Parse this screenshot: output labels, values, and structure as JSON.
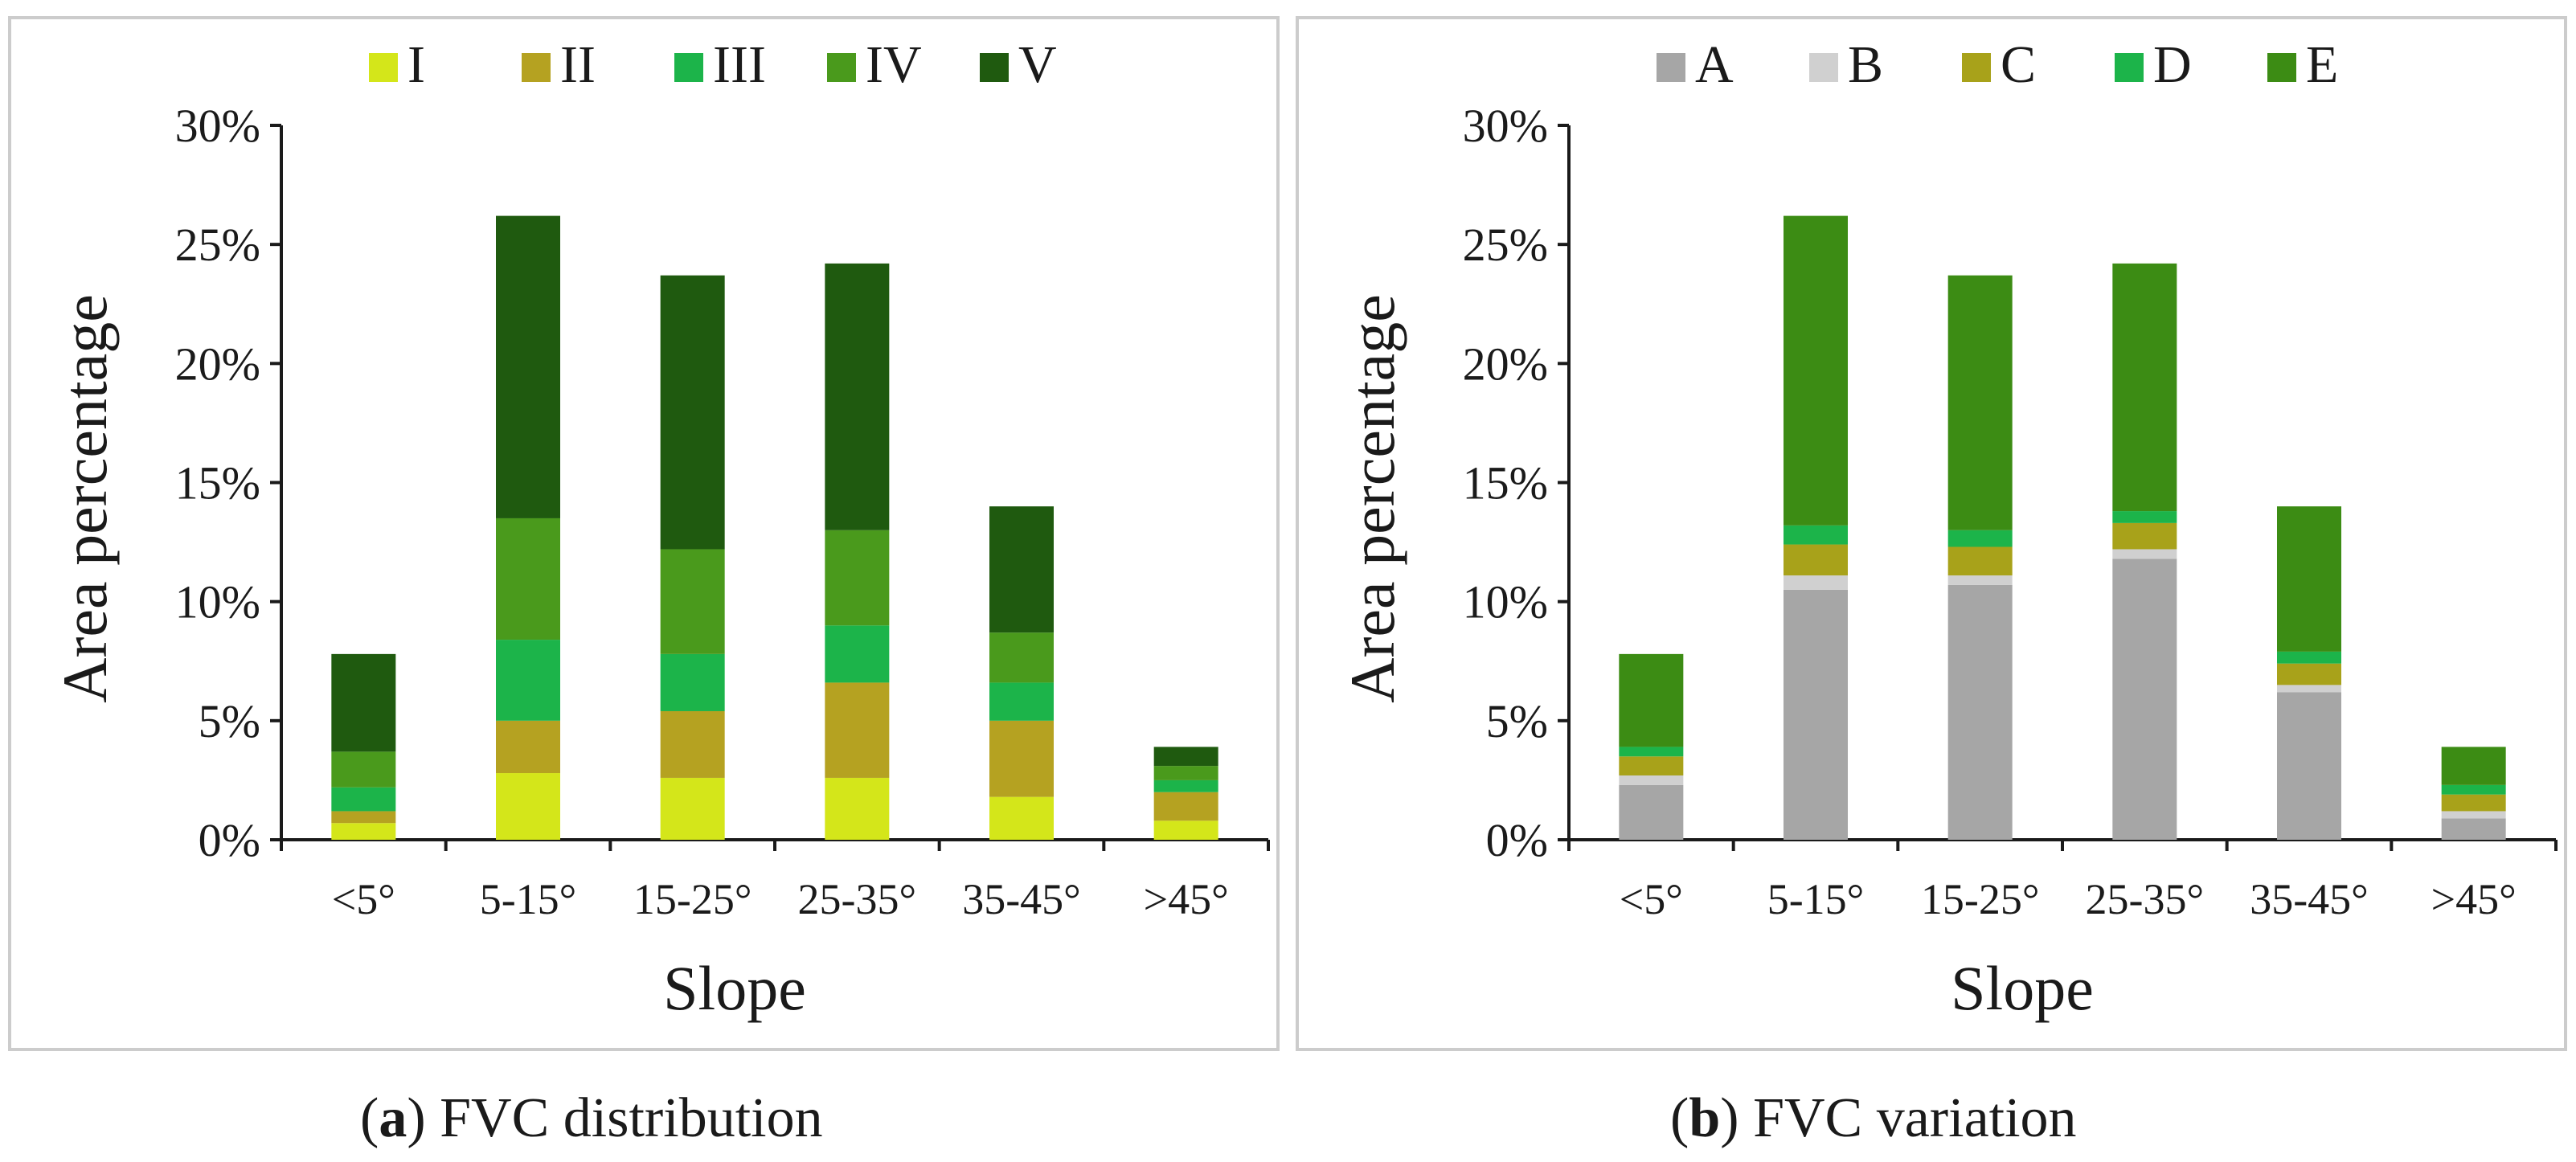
{
  "chart_data": [
    {
      "type": "bar",
      "stacked": true,
      "title": "",
      "xlabel": "Slope",
      "ylabel": "Area percentage",
      "ylim": [
        0,
        30
      ],
      "yticks": [
        "0%",
        "5%",
        "10%",
        "15%",
        "20%",
        "25%",
        "30%"
      ],
      "categories": [
        "<5°",
        "5-15°",
        "15-25°",
        "25-35°",
        "35-45°",
        ">45°"
      ],
      "legend_position": "top",
      "series": [
        {
          "name": "I",
          "color": "#d4e61a",
          "values": [
            0.7,
            2.8,
            2.6,
            2.6,
            1.8,
            0.8
          ]
        },
        {
          "name": "II",
          "color": "#b5a221",
          "values": [
            0.5,
            2.2,
            2.8,
            4.0,
            3.2,
            1.2
          ]
        },
        {
          "name": "III",
          "color": "#1cb44a",
          "values": [
            1.0,
            3.4,
            2.4,
            2.4,
            1.6,
            0.5
          ]
        },
        {
          "name": "IV",
          "color": "#4a9a1c",
          "values": [
            1.5,
            5.1,
            4.4,
            4.0,
            2.1,
            0.6
          ]
        },
        {
          "name": "V",
          "color": "#1f5a0f",
          "values": [
            4.1,
            12.7,
            11.5,
            11.2,
            5.3,
            0.8
          ]
        }
      ]
    },
    {
      "type": "bar",
      "stacked": true,
      "title": "",
      "xlabel": "Slope",
      "ylabel": "Area percentage",
      "ylim": [
        0,
        30
      ],
      "yticks": [
        "0%",
        "5%",
        "10%",
        "15%",
        "20%",
        "25%",
        "30%"
      ],
      "categories": [
        "<5°",
        "5-15°",
        "15-25°",
        "25-35°",
        "35-45°",
        ">45°"
      ],
      "legend_position": "top",
      "series": [
        {
          "name": "A",
          "color": "#a6a6a6",
          "values": [
            2.3,
            10.5,
            10.7,
            11.8,
            6.2,
            0.9
          ]
        },
        {
          "name": "B",
          "color": "#d0d0d0",
          "values": [
            0.4,
            0.6,
            0.4,
            0.4,
            0.3,
            0.3
          ]
        },
        {
          "name": "C",
          "color": "#a8a21a",
          "values": [
            0.8,
            1.3,
            1.2,
            1.1,
            0.9,
            0.7
          ]
        },
        {
          "name": "D",
          "color": "#1cb44a",
          "values": [
            0.4,
            0.8,
            0.7,
            0.5,
            0.5,
            0.4
          ]
        },
        {
          "name": "E",
          "color": "#3c8c14",
          "values": [
            3.9,
            13.0,
            10.7,
            10.4,
            6.1,
            1.6
          ]
        }
      ]
    }
  ],
  "captions": {
    "a": {
      "letter": "a",
      "text": "FVC distribution"
    },
    "b": {
      "letter": "b",
      "text": "FVC variation"
    }
  }
}
